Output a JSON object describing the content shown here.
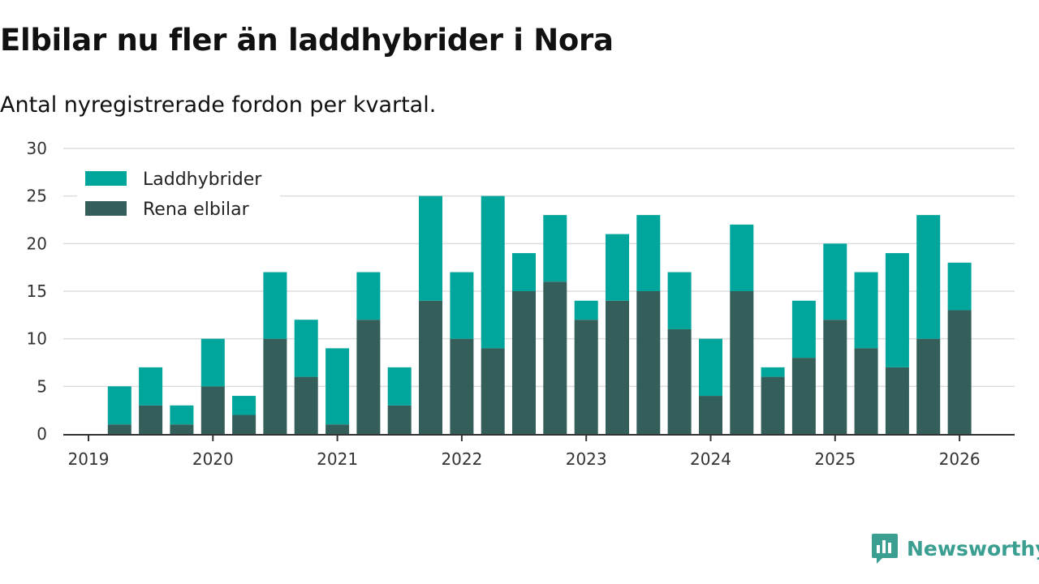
{
  "header": {
    "title": "Elbilar nu fler än laddhybrider i Nora",
    "subtitle": "Antal nyregistrerade fordon per kvartal."
  },
  "brand": {
    "name": "Newsworthy",
    "icon": "newsworthy-logo-icon",
    "color": "#3a9e91"
  },
  "chart_data": {
    "type": "bar",
    "stacked": true,
    "x_tick_labels": [
      "2019",
      "2020",
      "2021",
      "2022",
      "2023",
      "2024",
      "2025",
      "2026"
    ],
    "categories": [
      "2019 Q2",
      "2019 Q3",
      "2019 Q4",
      "2020 Q1",
      "2020 Q2",
      "2020 Q3",
      "2020 Q4",
      "2021 Q1",
      "2021 Q2",
      "2021 Q3",
      "2021 Q4",
      "2022 Q1",
      "2022 Q2",
      "2022 Q3",
      "2022 Q4",
      "2023 Q1",
      "2023 Q2",
      "2023 Q3",
      "2023 Q4",
      "2024 Q1",
      "2024 Q2",
      "2024 Q3",
      "2024 Q4",
      "2025 Q1",
      "2025 Q2",
      "2025 Q3",
      "2025 Q4",
      "2026 Q1"
    ],
    "series": [
      {
        "name": "Rena elbilar",
        "color": "#335e5a",
        "values": [
          1,
          3,
          1,
          5,
          2,
          10,
          6,
          1,
          12,
          3,
          14,
          10,
          9,
          15,
          16,
          12,
          14,
          15,
          11,
          4,
          15,
          6,
          8,
          12,
          9,
          7,
          10,
          13
        ]
      },
      {
        "name": "Laddhybrider",
        "color": "#00a59b",
        "values": [
          4,
          4,
          2,
          5,
          2,
          7,
          6,
          8,
          5,
          4,
          11,
          7,
          16,
          4,
          7,
          2,
          7,
          8,
          6,
          6,
          7,
          1,
          6,
          8,
          8,
          12,
          13,
          5
        ]
      }
    ],
    "legend": {
      "position": "top-left",
      "order": [
        "Laddhybrider",
        "Rena elbilar"
      ]
    },
    "y_ticks": [
      0,
      5,
      10,
      15,
      20,
      25,
      30
    ],
    "ylim": [
      0,
      30
    ],
    "grid": true
  }
}
